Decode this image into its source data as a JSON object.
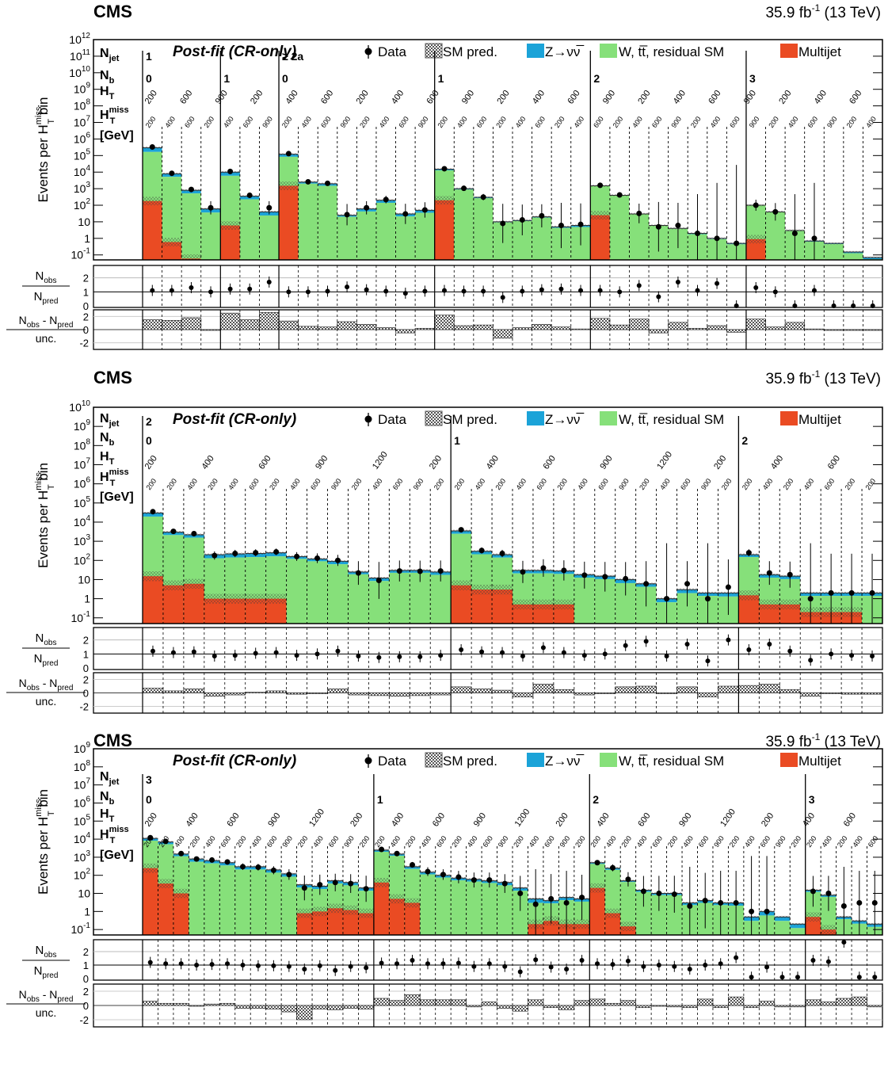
{
  "page_title": "CMS post-fit control-region distributions",
  "colors": {
    "zinv": "#1ba3d8",
    "wtt": "#86e07a",
    "multijet": "#ea4b23",
    "data": "#000000",
    "uncertainty": "#444444"
  },
  "common": {
    "experiment": "CMS",
    "lumi": "35.9 fb",
    "lumi_sup": "-1",
    "lumi_energy": " (13 TeV)",
    "fit_label": "Post-fit (CR-only)",
    "legend": [
      "Data",
      "SM pred.",
      "Z→νν̅",
      "W, tt̅, residual SM",
      "Multijet"
    ],
    "ylabel_main": "Events per H",
    "ylabel_sup": "miss",
    "ylabel_sub": "T",
    "ylabel_tail": " bin",
    "ratio_num": "N",
    "ratio_num_sub": "obs",
    "ratio_den": "N",
    "ratio_den_sub": "pred",
    "pull_num": "N",
    "pull_num_sub1": "obs",
    "pull_mid": " - N",
    "pull_num_sub2": "pred",
    "pull_den": "unc.",
    "bin_labels": [
      "N",
      "N",
      "H",
      "H",
      "[GeV]"
    ],
    "bin_label_subs": [
      "jet",
      "b",
      "T",
      "T",
      ""
    ],
    "bin_label_sups": [
      "",
      "",
      "",
      "miss",
      ""
    ]
  },
  "chart_data": [
    {
      "type": "bar",
      "title": "Post-fit (CR-only)",
      "ylabel": "Events per H_T^miss bin",
      "yscale": "log",
      "ylim": [
        0.05,
        1000000000000
      ],
      "yticks": [
        "10^-1",
        "1",
        "10",
        "10^2",
        "10^3",
        "10^4",
        "10^5",
        "10^6",
        "10^7",
        "10^8",
        "10^9",
        "10^10",
        "10^11",
        "10^12"
      ],
      "njet_labels": [
        "1",
        "≥ 2a"
      ],
      "nb_labels": [
        "0",
        "1",
        "0",
        "1",
        "2",
        "3"
      ],
      "ht_labels": [
        "200",
        "600",
        "900",
        "200",
        "400",
        "600",
        "200",
        "400",
        "600",
        "900",
        "200",
        "400",
        "600",
        "900",
        "200",
        "400",
        "600",
        "900",
        "200",
        "400",
        "600"
      ],
      "htmiss_labels": [
        "200",
        "400",
        "600",
        "200",
        "400",
        "600",
        "900",
        "200",
        "400",
        "600",
        "900",
        "200",
        "400",
        "600",
        "900",
        "200",
        "400",
        "600",
        "200",
        "400",
        "600"
      ],
      "ratio_yticks": [
        "0",
        "1",
        "2"
      ],
      "pull_yticks": [
        "-2",
        "0",
        "2"
      ],
      "total": [
        300000,
        8000,
        800,
        60,
        10000,
        350,
        40,
        120000,
        2500,
        2000,
        25,
        60,
        200,
        30,
        50,
        15000,
        1000,
        300,
        10,
        12,
        20,
        5,
        6,
        1500,
        400,
        30,
        6,
        4,
        2,
        1,
        0.5,
        100,
        40,
        3,
        0.7,
        0.5,
        0.15,
        0.07
      ],
      "multijet": [
        180,
        0.6,
        0.06,
        0,
        6,
        0.03,
        0,
        1500,
        0,
        0,
        0,
        0,
        0,
        0,
        0,
        200,
        0,
        0,
        0,
        0,
        0,
        0,
        0,
        25,
        0,
        0,
        0,
        0,
        0,
        0,
        0,
        0.9,
        0,
        0,
        0,
        0,
        0,
        0
      ],
      "zinv_frac": [
        0.45,
        0.35,
        0.35,
        0.4,
        0.4,
        0.35,
        0.4,
        0.3,
        0.2,
        0.25,
        0.2,
        0.3,
        0.3,
        0.3,
        0.3,
        0.15,
        0.12,
        0.12,
        0.08,
        0.08,
        0.1,
        0.15,
        0.2,
        0.05,
        0.05,
        0.05,
        0.05,
        0.05,
        0.1,
        0.1,
        0.12,
        0.05,
        0.05,
        0.05,
        0.1,
        0.1,
        0.15,
        0.2
      ],
      "data": [
        330000,
        8500,
        900,
        70,
        11000,
        400,
        70,
        130000,
        2600,
        2100,
        27,
        70,
        220,
        30,
        52,
        16000,
        1050,
        310,
        8,
        13,
        23,
        6,
        7,
        1600,
        420,
        32,
        5,
        6,
        2,
        1,
        0.5,
        100,
        40,
        2,
        1,
        0,
        0,
        0
      ],
      "ratio": [
        1.1,
        1.1,
        1.3,
        1.0,
        1.2,
        1.2,
        1.7,
        1.0,
        1.0,
        1.05,
        1.35,
        1.15,
        1.05,
        0.9,
        1.05,
        1.1,
        1.05,
        1.05,
        0.6,
        1.05,
        1.15,
        1.2,
        1.1,
        1.1,
        1.0,
        1.45,
        0.65,
        1.7,
        1.1,
        1.6,
        0,
        1.3,
        1.0,
        0,
        1.1,
        0,
        0,
        0
      ],
      "pull": [
        1.5,
        1.4,
        1.8,
        0,
        2.5,
        1.5,
        2.6,
        1.3,
        0.5,
        0.4,
        1.2,
        0.8,
        0.3,
        -0.5,
        0.2,
        2.2,
        0.6,
        0.7,
        -1.3,
        0.3,
        0.8,
        0.4,
        0.1,
        1.7,
        0.7,
        1.6,
        -0.5,
        1.1,
        0.2,
        0.6,
        -0.4,
        1.6,
        0.4,
        1.1,
        0.1,
        -0.1,
        -0.05,
        -0.05
      ]
    },
    {
      "type": "bar",
      "title": "Post-fit (CR-only)",
      "ylabel": "Events per H_T^miss bin",
      "yscale": "log",
      "ylim": [
        0.05,
        10000000000
      ],
      "yticks": [
        "10^-1",
        "1",
        "10",
        "10^2",
        "10^3",
        "10^4",
        "10^5",
        "10^6",
        "10^7",
        "10^8",
        "10^9",
        "10^10"
      ],
      "njet_labels": [
        "2"
      ],
      "nb_labels": [
        "0",
        "1",
        "2"
      ],
      "ht_labels": [
        "200",
        "400",
        "600",
        "900",
        "1200",
        "200",
        "400",
        "600",
        "900",
        "1200",
        "200",
        "400",
        "600"
      ],
      "htmiss_labels": [
        "200",
        "200",
        "400",
        "200",
        "400",
        "600",
        "200",
        "400",
        "600",
        "900",
        "200",
        "400",
        "600",
        "900",
        "200",
        "200",
        "400",
        "200",
        "400",
        "600",
        "200",
        "400",
        "600",
        "900",
        "200",
        "400",
        "600",
        "900",
        "200",
        "200",
        "400",
        "200",
        "400",
        "600"
      ],
      "ratio_yticks": [
        "0",
        "1",
        "2"
      ],
      "pull_yticks": [
        "-2",
        "0",
        "2"
      ],
      "total": [
        30000,
        3000,
        2200,
        200,
        220,
        230,
        250,
        160,
        120,
        90,
        25,
        12,
        30,
        30,
        25,
        3500,
        300,
        200,
        30,
        30,
        28,
        18,
        15,
        10,
        6,
        1,
        3,
        2,
        2,
        200,
        18,
        15,
        2,
        2,
        2,
        2
      ],
      "multijet": [
        15,
        5,
        6,
        1,
        1,
        1,
        1,
        0,
        0,
        0,
        0,
        0,
        0,
        0,
        0,
        5,
        3,
        3,
        0.5,
        0.5,
        0.5,
        0,
        0,
        0,
        0,
        0,
        0,
        0,
        0,
        1.5,
        0.5,
        0.5,
        0.2,
        0.2,
        0.2,
        0
      ],
      "zinv_frac": [
        0.35,
        0.3,
        0.3,
        0.35,
        0.35,
        0.35,
        0.35,
        0.25,
        0.25,
        0.3,
        0.25,
        0.3,
        0.25,
        0.25,
        0.3,
        0.3,
        0.3,
        0.3,
        0.3,
        0.3,
        0.3,
        0.3,
        0.3,
        0.35,
        0.3,
        0.35,
        0.35,
        0.3,
        0.35,
        0.25,
        0.3,
        0.3,
        0.3,
        0.3,
        0.3,
        0.3
      ],
      "data": [
        35000,
        3300,
        2500,
        180,
        230,
        250,
        280,
        160,
        130,
        100,
        22,
        9,
        28,
        27,
        28,
        4000,
        330,
        230,
        25,
        40,
        30,
        17,
        14,
        11,
        6,
        1,
        6,
        1,
        4,
        250,
        22,
        18,
        1,
        2,
        2,
        2
      ],
      "ratio": [
        1.2,
        1.1,
        1.15,
        0.85,
        0.9,
        1.05,
        1.1,
        0.9,
        1.0,
        1.2,
        0.85,
        0.75,
        0.8,
        0.8,
        0.9,
        1.3,
        1.15,
        1.1,
        0.85,
        1.45,
        1.1,
        0.9,
        1.0,
        1.6,
        1.9,
        0.85,
        1.7,
        0.5,
        2.0,
        1.3,
        1.7,
        1.2,
        0.55,
        1.0,
        0.9,
        0.85
      ],
      "pull": [
        0.7,
        0.3,
        0.6,
        -0.5,
        -0.3,
        0.1,
        0.3,
        -0.2,
        -0.1,
        0.6,
        -0.3,
        -0.4,
        -0.5,
        -0.4,
        -0.3,
        0.9,
        0.6,
        0.4,
        -0.6,
        1.3,
        0.5,
        -0.3,
        0.0,
        0.9,
        1.0,
        0.0,
        0.9,
        -0.6,
        1.0,
        1.1,
        1.3,
        0.5,
        -0.5,
        -0.1,
        -0.2,
        -0.2
      ]
    },
    {
      "type": "bar",
      "title": "Post-fit (CR-only)",
      "ylabel": "Events per H_T^miss bin",
      "yscale": "log",
      "ylim": [
        0.05,
        1000000000
      ],
      "yticks": [
        "10^-1",
        "1",
        "10",
        "10^2",
        "10^3",
        "10^4",
        "10^5",
        "10^6",
        "10^7",
        "10^8",
        "10^9"
      ],
      "njet_labels": [
        "3"
      ],
      "nb_labels": [
        "0",
        "1",
        "2",
        "3"
      ],
      "ht_labels": [
        "200",
        "400",
        "600",
        "900",
        "1200",
        "200",
        "400",
        "600",
        "900",
        "1200",
        "200",
        "400",
        "600",
        "900",
        "1200",
        "200",
        "400",
        "600"
      ],
      "htmiss_labels": [
        "200",
        "200",
        "400",
        "200",
        "400",
        "600",
        "200",
        "400",
        "600",
        "900",
        "200",
        "400",
        "600",
        "900",
        "200",
        "200",
        "400",
        "200",
        "400",
        "600",
        "200",
        "400",
        "600",
        "900",
        "200",
        "400",
        "600",
        "900",
        "200",
        "200",
        "400",
        "200",
        "400",
        "600",
        "200",
        "400",
        "600",
        "900",
        "200",
        "400",
        "600",
        "900",
        "200",
        "200",
        "400",
        "200",
        "400",
        "600"
      ],
      "ratio_yticks": [
        "0",
        "1",
        "2"
      ],
      "pull_yticks": [
        "-2",
        "0",
        "2"
      ],
      "total": [
        11000,
        7000,
        1500,
        800,
        650,
        500,
        300,
        300,
        200,
        120,
        30,
        25,
        50,
        40,
        20,
        2500,
        1500,
        300,
        150,
        100,
        70,
        60,
        50,
        40,
        20,
        5,
        4,
        6,
        5,
        500,
        250,
        50,
        15,
        10,
        10,
        3,
        4,
        3,
        3,
        0.5,
        1,
        0.5,
        0.2,
        15,
        8,
        0.5,
        0.3,
        0.2
      ],
      "multijet": [
        250,
        35,
        10,
        0,
        0,
        0,
        0,
        0,
        0,
        0,
        0.8,
        1,
        1.5,
        1.2,
        0.8,
        40,
        5,
        3,
        0,
        0,
        0,
        0,
        0,
        0,
        0,
        0.2,
        0.3,
        0.2,
        0.2,
        20,
        0.8,
        0.15,
        0,
        0,
        0,
        0,
        0,
        0,
        0,
        0,
        0,
        0,
        0,
        0.5,
        0.1,
        0,
        0,
        0
      ],
      "zinv_frac": [
        0.25,
        0.25,
        0.25,
        0.3,
        0.3,
        0.3,
        0.3,
        0.3,
        0.3,
        0.3,
        0.3,
        0.3,
        0.3,
        0.3,
        0.3,
        0.2,
        0.2,
        0.25,
        0.25,
        0.25,
        0.25,
        0.25,
        0.25,
        0.3,
        0.3,
        0.4,
        0.3,
        0.3,
        0.3,
        0.15,
        0.2,
        0.15,
        0.2,
        0.2,
        0.2,
        0.25,
        0.25,
        0.25,
        0.3,
        0.4,
        0.4,
        0.4,
        0.4,
        0.2,
        0.2,
        0.25,
        0.3,
        0.3
      ],
      "data": [
        12000,
        7500,
        1600,
        800,
        700,
        550,
        300,
        280,
        190,
        110,
        20,
        30,
        40,
        35,
        18,
        2700,
        1600,
        380,
        160,
        110,
        80,
        55,
        55,
        35,
        10,
        2.5,
        5,
        3,
        6,
        500,
        260,
        60,
        13,
        10,
        9,
        2,
        4,
        3,
        3,
        1,
        1,
        0,
        0,
        13,
        10,
        2,
        3,
        3
      ],
      "ratio": [
        1.2,
        1.1,
        1.1,
        1.0,
        1.05,
        1.1,
        1.0,
        0.95,
        0.95,
        0.9,
        0.7,
        0.95,
        0.6,
        0.9,
        0.8,
        1.15,
        1.1,
        1.35,
        1.1,
        1.1,
        1.15,
        0.9,
        1.1,
        0.9,
        0.5,
        1.4,
        0.85,
        0.7,
        1.35,
        1.1,
        1.05,
        1.3,
        0.9,
        1.0,
        0.9,
        0.7,
        1.0,
        1.1,
        1.55,
        0.1,
        0.85,
        0.1,
        0.1,
        1.35,
        1.25,
        2.7,
        0.1,
        0.1
      ],
      "pull": [
        0.6,
        0.3,
        0.3,
        0.0,
        0.2,
        0.3,
        -0.4,
        -0.4,
        -0.5,
        -0.9,
        -2.0,
        -0.5,
        -0.6,
        -0.4,
        -0.5,
        1.0,
        0.7,
        1.5,
        0.8,
        0.8,
        0.8,
        -0.2,
        0.5,
        -0.4,
        -0.8,
        0.8,
        -0.3,
        -0.6,
        0.7,
        0.9,
        0.3,
        0.7,
        -0.3,
        0.0,
        -0.2,
        -0.3,
        0.9,
        -0.3,
        1.2,
        -0.3,
        0.6,
        -0.2,
        -0.2,
        0.8,
        0.5,
        1.0,
        1.2,
        -0.2
      ]
    }
  ]
}
